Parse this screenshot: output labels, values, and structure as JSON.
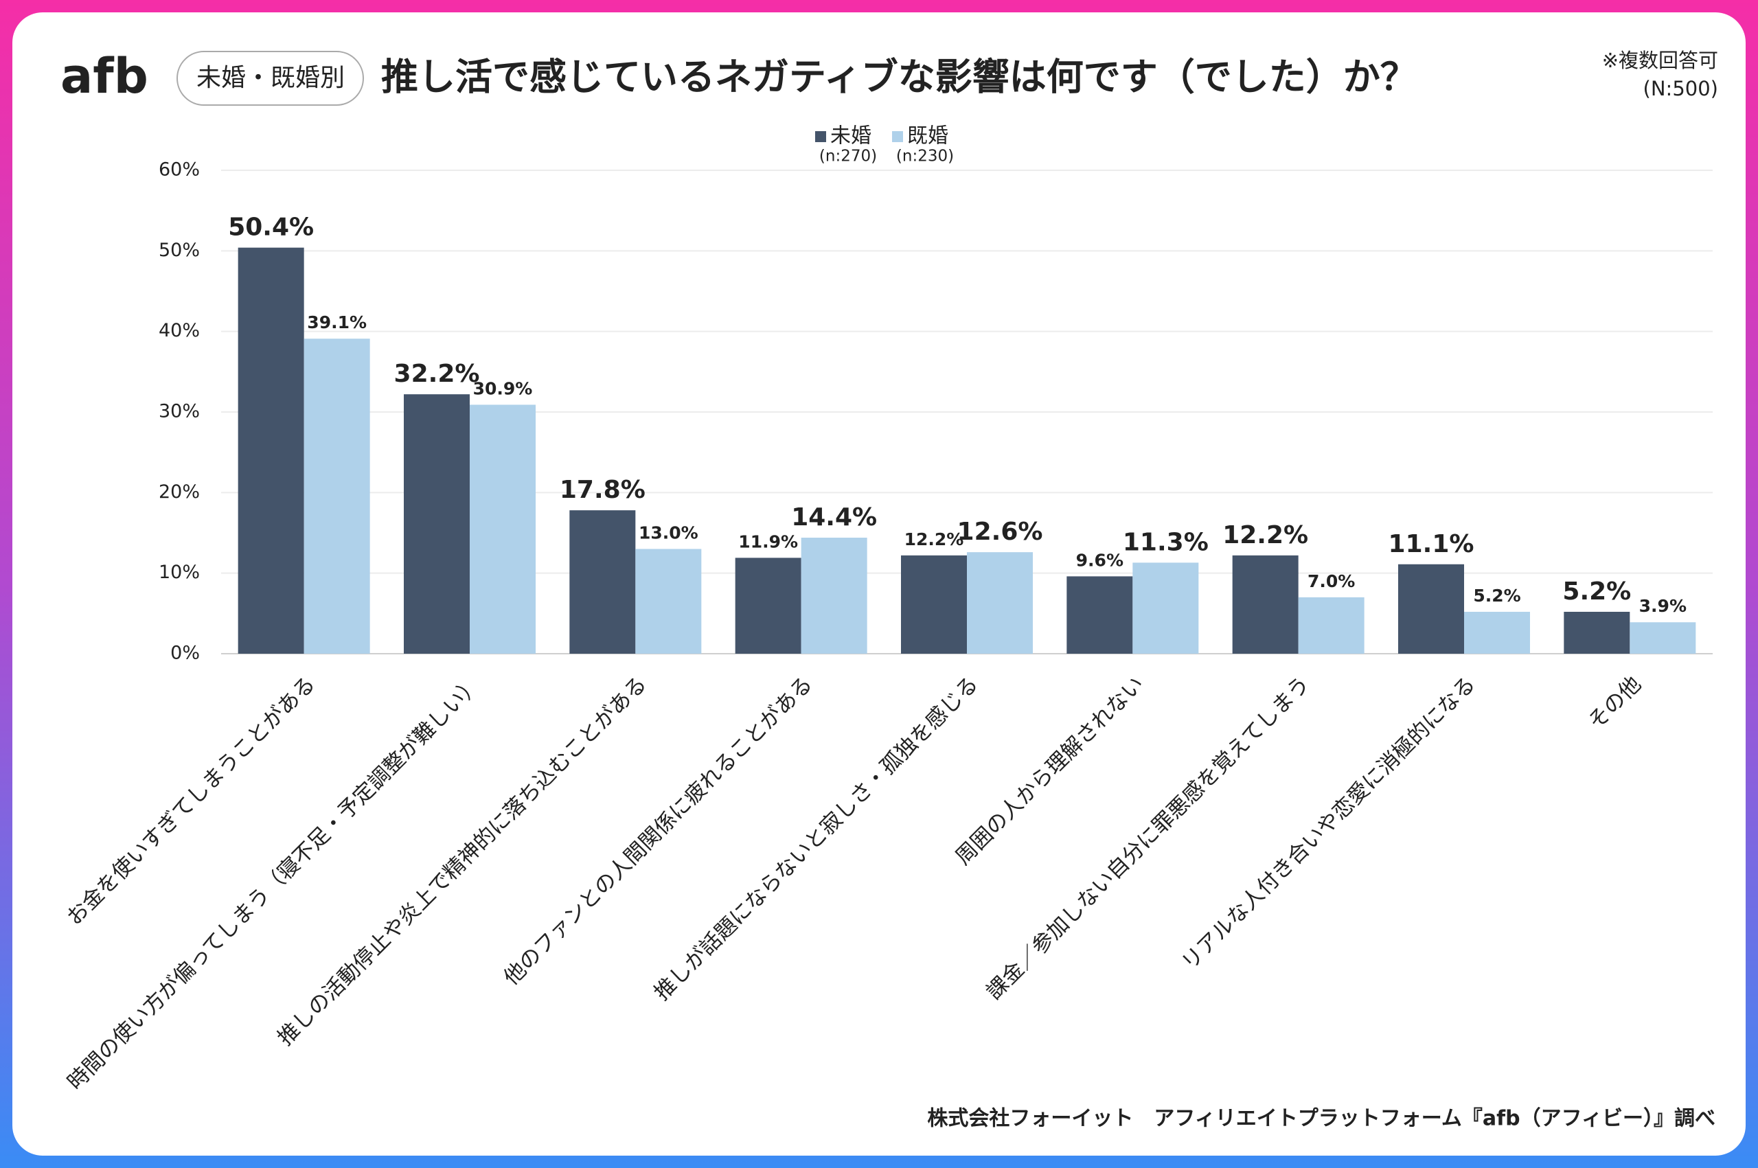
{
  "logo": "afb",
  "badge": "未婚・既婚別",
  "note": "※複数回答可",
  "total_n": "(N:500)",
  "source": "株式会社フォーイット　アフィリエイトプラットフォーム『afb（アフィビー）』調べ",
  "chart_data": {
    "type": "bar",
    "title": "推し活で感じているネガティブな影響は何です（でした）か？",
    "categories": [
      "お金を使いすぎてしまうことがある",
      "時間の使い方が偏ってしまう（寝不足・予定調整が難しい）",
      "推しの活動停止や炎上で精神的に落ち込むことがある",
      "他のファンとの人間関係に疲れることがある",
      "推しが話題にならないと寂しさ・孤独を感じる",
      "周囲の人から理解されない",
      "課金／参加しない自分に罪悪感を覚えてしまう",
      "リアルな人付き合いや恋愛に消極的になる",
      "その他"
    ],
    "series": [
      {
        "name": "未婚",
        "sample": "(n:270)",
        "color": "#44546a",
        "highlight_color": "#44546a",
        "values": [
          50.4,
          32.2,
          17.8,
          11.9,
          12.2,
          9.6,
          12.2,
          11.1,
          5.2
        ],
        "value_labels": [
          "50.4%",
          "32.2%",
          "17.8%",
          "11.9%",
          "12.2%",
          "9.6%",
          "12.2%",
          "11.1%",
          "5.2%"
        ]
      },
      {
        "name": "既婚",
        "sample": "(n:230)",
        "color": "#afd1ea",
        "highlight_color": "#5b9bd5",
        "values": [
          39.1,
          30.9,
          13.0,
          14.4,
          12.6,
          11.3,
          7.0,
          5.2,
          3.9
        ],
        "value_labels": [
          "39.1%",
          "30.9%",
          "13.0%",
          "14.4%",
          "12.6%",
          "11.3%",
          "7.0%",
          "5.2%",
          "3.9%"
        ]
      }
    ],
    "ylim": [
      0,
      60
    ],
    "yticks": [
      {
        "value": 0,
        "label": "0%"
      },
      {
        "value": 10,
        "label": "10%"
      },
      {
        "value": 20,
        "label": "20%"
      },
      {
        "value": 30,
        "label": "30%"
      },
      {
        "value": 40,
        "label": "40%"
      },
      {
        "value": 50,
        "label": "50%"
      },
      {
        "value": 60,
        "label": "60%"
      }
    ],
    "grid": true
  }
}
